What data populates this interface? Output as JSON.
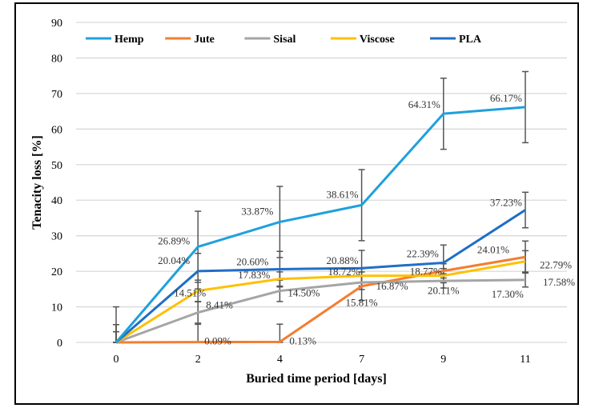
{
  "chart_data": {
    "type": "line",
    "title": "",
    "xlabel": "Buried time period [days]",
    "ylabel": "Tenacity loss [%]",
    "categories": [
      "0",
      "2",
      "4",
      "7",
      "9",
      "11"
    ],
    "ylim": [
      0,
      90
    ],
    "yticks": [
      0,
      10,
      20,
      30,
      40,
      50,
      60,
      70,
      80,
      90
    ],
    "grid": true,
    "legend": "top",
    "series": [
      {
        "name": "Hemp",
        "color": "#1fa0dc",
        "values": [
          0,
          26.89,
          33.87,
          38.61,
          64.31,
          66.17
        ],
        "errors": [
          10,
          10,
          10,
          10,
          10,
          10
        ],
        "labels": [
          "",
          "26.89%",
          "33.87%",
          "38.61%",
          "64.31%",
          "66.17%"
        ]
      },
      {
        "name": "Jute",
        "color": "#f47d30",
        "values": [
          0,
          0.09,
          0.13,
          15.81,
          20.11,
          24.01
        ],
        "errors": [
          5,
          5,
          5,
          4,
          2,
          4.5
        ],
        "labels": [
          "",
          "0.09%",
          "0.13%",
          "15.81%",
          "20.11%",
          "24.01%"
        ]
      },
      {
        "name": "Sisal",
        "color": "#a5a5a5",
        "values": [
          0,
          8.41,
          14.5,
          16.87,
          17.3,
          17.58
        ],
        "errors": [
          3,
          3,
          3,
          2,
          2,
          2
        ],
        "labels": [
          "",
          "8.41%",
          "14.50%",
          "16.87%",
          "17.30%",
          "17.58%"
        ]
      },
      {
        "name": "Viscose",
        "color": "#ffc000",
        "values": [
          0,
          14.51,
          17.83,
          18.72,
          18.77,
          22.79
        ],
        "errors": [
          3,
          3,
          2,
          2,
          2,
          3
        ],
        "labels": [
          "",
          "14.51%",
          "17.83%",
          "18.72%",
          "18.77%",
          "22.79%"
        ]
      },
      {
        "name": "PLA",
        "color": "#1f6fc5",
        "values": [
          0,
          20.04,
          20.6,
          20.88,
          22.39,
          37.23
        ],
        "errors": [
          5,
          5,
          5,
          5,
          5,
          5
        ],
        "labels": [
          "",
          "20.04%",
          "20.60%",
          "20.88%",
          "22.39%",
          "37.23%"
        ]
      }
    ]
  }
}
